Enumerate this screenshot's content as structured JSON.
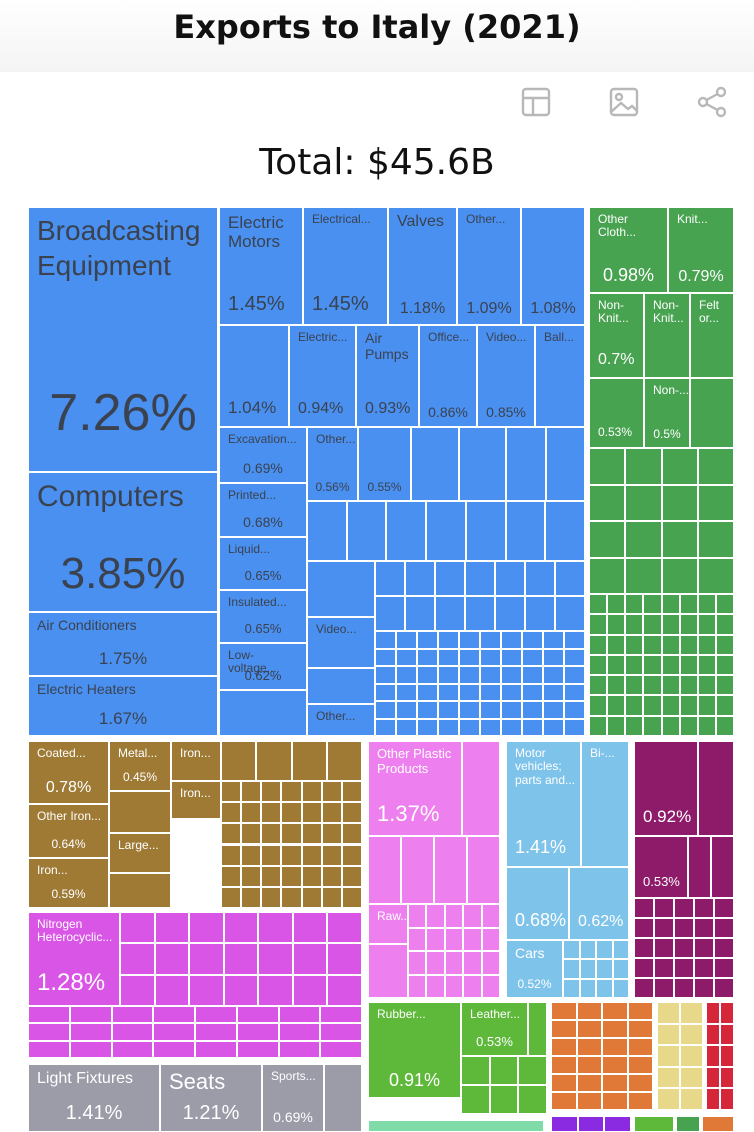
{
  "title": "Exports to Italy (2021)",
  "total": "Total: $45.6B",
  "toolbar": {
    "icons": [
      "table-icon",
      "image-icon",
      "share-icon"
    ]
  },
  "colors": {
    "machinery": "#4a90f0",
    "textiles": "#47a34f",
    "metals": "#9e7a35",
    "plastics": "#ee7fee",
    "chemicals": "#d955e6",
    "transport": "#7ec3ea",
    "instruments": "#8e1b6a",
    "misc": "#9b9ca8",
    "animal": "#5eb83a",
    "stone": "#e07838",
    "paper": "#e8d98a",
    "red": "#d6263a",
    "green_light": "#7fdca8",
    "purple": "#8a2be2"
  },
  "chart_data": {
    "type": "treemap",
    "title": "Exports to Italy (2021)",
    "total": "$45.6B",
    "items": [
      {
        "label": "Broadcasting Equipment",
        "value": "7.26%",
        "group": "machinery"
      },
      {
        "label": "Computers",
        "value": "3.85%",
        "group": "machinery"
      },
      {
        "label": "Air Conditioners",
        "value": "1.75%",
        "group": "machinery"
      },
      {
        "label": "Electric Heaters",
        "value": "1.67%",
        "group": "machinery"
      },
      {
        "label": "Electric Motors",
        "value": "1.45%",
        "group": "machinery"
      },
      {
        "label": "Electrical...",
        "value": "1.45%",
        "group": "machinery"
      },
      {
        "label": "Valves",
        "value": "1.18%",
        "group": "machinery"
      },
      {
        "label": "Other...",
        "value": "1.09%",
        "group": "machinery"
      },
      {
        "label": "",
        "value": "1.08%",
        "group": "machinery"
      },
      {
        "label": "",
        "value": "1.04%",
        "group": "machinery"
      },
      {
        "label": "Electric...",
        "value": "0.94%",
        "group": "machinery"
      },
      {
        "label": "Air Pumps",
        "value": "0.93%",
        "group": "machinery"
      },
      {
        "label": "Office...",
        "value": "0.86%",
        "group": "machinery"
      },
      {
        "label": "Video...",
        "value": "0.85%",
        "group": "machinery"
      },
      {
        "label": "Ball...",
        "value": "",
        "group": "machinery"
      },
      {
        "label": "Excavation...",
        "value": "0.69%",
        "group": "machinery"
      },
      {
        "label": "Other...",
        "value": "0.56%",
        "group": "machinery"
      },
      {
        "label": "",
        "value": "0.55%",
        "group": "machinery"
      },
      {
        "label": "Printed...",
        "value": "0.68%",
        "group": "machinery"
      },
      {
        "label": "Liquid...",
        "value": "0.65%",
        "group": "machinery"
      },
      {
        "label": "Insulated...",
        "value": "0.65%",
        "group": "machinery"
      },
      {
        "label": "Low-voltage...",
        "value": "0.62%",
        "group": "machinery"
      },
      {
        "label": "Video...",
        "value": "",
        "group": "machinery"
      },
      {
        "label": "Other...",
        "value": "",
        "group": "machinery"
      },
      {
        "label": "Other Cloth...",
        "value": "0.98%",
        "group": "textiles"
      },
      {
        "label": "Knit...",
        "value": "0.79%",
        "group": "textiles"
      },
      {
        "label": "Non-Knit...",
        "value": "0.7%",
        "group": "textiles"
      },
      {
        "label": "Non-Knit...",
        "value": "",
        "group": "textiles"
      },
      {
        "label": "Felt or...",
        "value": "",
        "group": "textiles"
      },
      {
        "label": "",
        "value": "0.53%",
        "group": "textiles"
      },
      {
        "label": "Non-...",
        "value": "0.5%",
        "group": "textiles"
      },
      {
        "label": "Coated...",
        "value": "0.78%",
        "group": "metals"
      },
      {
        "label": "Metal...",
        "value": "0.45%",
        "group": "metals"
      },
      {
        "label": "Iron...",
        "value": "",
        "group": "metals"
      },
      {
        "label": "Iron...",
        "value": "",
        "group": "metals"
      },
      {
        "label": "Other Iron...",
        "value": "0.64%",
        "group": "metals"
      },
      {
        "label": "Large...",
        "value": "",
        "group": "metals"
      },
      {
        "label": "Iron...",
        "value": "0.59%",
        "group": "metals"
      },
      {
        "label": "Other Plastic Products",
        "value": "1.37%",
        "group": "plastics"
      },
      {
        "label": "Raw...",
        "value": "",
        "group": "plastics"
      },
      {
        "label": "Motor vehicles; parts and...",
        "value": "1.41%",
        "group": "transport"
      },
      {
        "label": "Bi-...",
        "value": "",
        "group": "transport"
      },
      {
        "label": "",
        "value": "0.68%",
        "group": "transport"
      },
      {
        "label": "",
        "value": "0.62%",
        "group": "transport"
      },
      {
        "label": "Cars",
        "value": "0.52%",
        "group": "transport"
      },
      {
        "label": "",
        "value": "0.92%",
        "group": "instruments"
      },
      {
        "label": "",
        "value": "0.53%",
        "group": "instruments"
      },
      {
        "label": "Nitrogen Heterocyclic...",
        "value": "1.28%",
        "group": "chemicals"
      },
      {
        "label": "Rubber...",
        "value": "0.91%",
        "group": "animal"
      },
      {
        "label": "Leather...",
        "value": "0.53%",
        "group": "animal"
      },
      {
        "label": "Light Fixtures",
        "value": "1.41%",
        "group": "misc"
      },
      {
        "label": "Seats",
        "value": "1.21%",
        "group": "misc"
      },
      {
        "label": "Sports...",
        "value": "0.69%",
        "group": "misc"
      }
    ]
  }
}
